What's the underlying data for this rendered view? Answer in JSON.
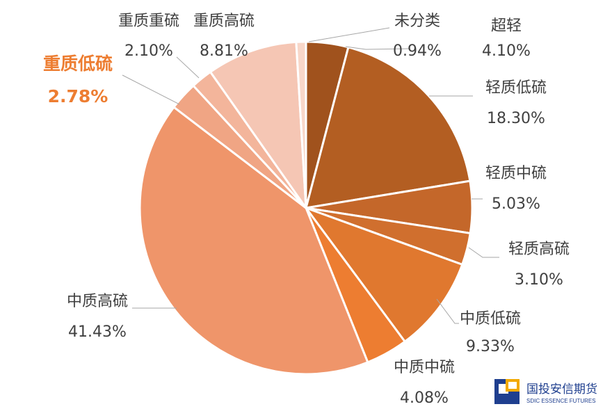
{
  "chart_data": {
    "type": "pie",
    "start_angle_deg": 0,
    "direction": "clockwise",
    "slices": [
      {
        "label": "超轻",
        "value_text": "4.10%",
        "value": 4.1,
        "color": "#A0521D",
        "highlight": false
      },
      {
        "label": "轻质低硫",
        "value_text": "18.30%",
        "value": 18.3,
        "color": "#B35E22",
        "highlight": false
      },
      {
        "label": "轻质中硫",
        "value_text": "5.03%",
        "value": 5.03,
        "color": "#C4672A",
        "highlight": false
      },
      {
        "label": "轻质高硫",
        "value_text": "3.10%",
        "value": 3.1,
        "color": "#D06F2E",
        "highlight": false
      },
      {
        "label": "中质低硫",
        "value_text": "9.33%",
        "value": 9.33,
        "color": "#E0782F",
        "highlight": false
      },
      {
        "label": "中质中硫",
        "value_text": "4.08%",
        "value": 4.08,
        "color": "#ED7D31",
        "highlight": false
      },
      {
        "label": "中质高硫",
        "value_text": "41.43%",
        "value": 41.43,
        "color": "#EF956A",
        "highlight": false
      },
      {
        "label": "重质低硫",
        "value_text": "2.78%",
        "value": 2.78,
        "color": "#F0A584",
        "highlight": true
      },
      {
        "label": "重质重硫",
        "value_text": "2.10%",
        "value": 2.1,
        "color": "#F3B59B",
        "highlight": false
      },
      {
        "label": "重质高硫",
        "value_text": "8.81%",
        "value": 8.81,
        "color": "#F5C6B4",
        "highlight": false
      },
      {
        "label": "未分类",
        "value_text": "0.94%",
        "value": 0.94,
        "color": "#F8D7C9",
        "highlight": false
      }
    ],
    "highlight_color": "#ED7D31",
    "label_color": "#404040",
    "leader_color": "#A6A6A6"
  },
  "logo": {
    "name_cn": "国投安信期货",
    "name_en": "SDIC ESSENCE FUTURES",
    "color_blue": "#1F3F8F",
    "color_gold": "#F2A900"
  }
}
